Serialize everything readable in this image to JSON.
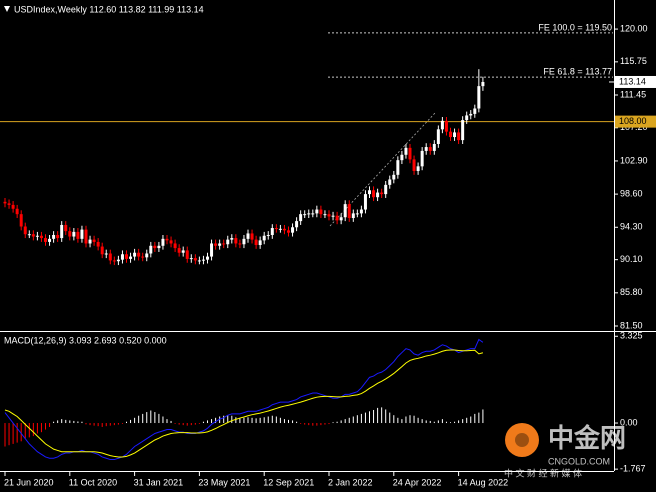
{
  "chart_data": [
    {
      "type": "candlestick",
      "title": "USDIndex,Weekly  112.60 113.82 111.99 113.14",
      "categories": [
        "21 Jun 2020",
        null,
        null,
        null,
        null,
        null,
        null,
        null,
        null,
        null,
        null,
        null,
        null,
        null,
        null,
        null,
        "11 Oct 2020",
        null,
        null,
        null,
        null,
        null,
        null,
        null,
        null,
        null,
        null,
        null,
        null,
        null,
        null,
        null,
        "31 Jan 2021",
        null,
        null,
        null,
        null,
        null,
        null,
        null,
        null,
        null,
        null,
        null,
        null,
        null,
        null,
        null,
        "23 May 2021",
        null,
        null,
        null,
        null,
        null,
        null,
        null,
        null,
        null,
        null,
        null,
        null,
        null,
        null,
        null,
        "12 Sep 2021",
        null,
        null,
        null,
        null,
        null,
        null,
        null,
        null,
        null,
        null,
        null,
        null,
        null,
        null,
        null,
        "2 Jan 2022",
        null,
        null,
        null,
        null,
        null,
        null,
        null,
        null,
        null,
        null,
        null,
        null,
        null,
        null,
        null,
        "24 Apr 2022",
        null,
        null,
        null,
        null,
        null,
        null,
        null,
        null,
        null,
        null,
        null,
        null,
        null,
        null,
        null,
        "14 Aug 2022",
        null,
        null,
        null,
        null,
        null,
        null
      ],
      "open": [
        97.6,
        97.4,
        97.2,
        96.7,
        96.0,
        94.4,
        93.4,
        93.4,
        93.1,
        93.2,
        92.9,
        92.4,
        92.8,
        93.3,
        92.9,
        94.6,
        93.8,
        93.1,
        93.7,
        92.8,
        94.0,
        92.2,
        92.7,
        92.4,
        91.8,
        90.8,
        90.9,
        90.0,
        89.9,
        90.1,
        90.8,
        90.2,
        90.5,
        91.0,
        90.5,
        90.4,
        90.9,
        91.9,
        91.6,
        91.9,
        92.8,
        92.6,
        92.2,
        91.6,
        91.0,
        91.3,
        90.2,
        90.3,
        90.0,
        90.0,
        90.1,
        90.5,
        92.2,
        91.9,
        92.2,
        92.1,
        92.7,
        92.9,
        92.2,
        92.1,
        92.8,
        93.5,
        92.7,
        92.0,
        92.6,
        93.2,
        93.3,
        94.2,
        94.1,
        94.1,
        93.9,
        93.6,
        94.3,
        95.1,
        96.0,
        96.0,
        96.1,
        96.1,
        96.6,
        96.0,
        96.0,
        95.7,
        95.8,
        95.2,
        95.6,
        97.3,
        95.5,
        96.1,
        96.1,
        96.6,
        98.6,
        99.1,
        98.2,
        98.8,
        98.6,
        99.8,
        100.5,
        101.1,
        103.0,
        103.7,
        104.6,
        103.1,
        101.6,
        102.2,
        104.2,
        104.7,
        104.2,
        105.1,
        107.0,
        108.1,
        106.7,
        106.0,
        106.6,
        105.6,
        108.2,
        108.8,
        109.0,
        109.7,
        112.6
      ],
      "high": [
        98.1,
        97.9,
        97.7,
        97.2,
        96.5,
        94.9,
        93.9,
        93.9,
        93.7,
        93.7,
        93.4,
        93.3,
        93.8,
        93.8,
        95.1,
        95.1,
        94.3,
        94.2,
        94.2,
        94.5,
        94.5,
        93.2,
        93.2,
        92.9,
        92.3,
        91.4,
        91.4,
        90.5,
        90.6,
        91.3,
        91.3,
        91.0,
        91.5,
        91.5,
        91.0,
        91.4,
        92.4,
        92.4,
        92.4,
        93.3,
        93.3,
        93.1,
        92.7,
        92.1,
        91.8,
        91.8,
        90.8,
        90.8,
        90.5,
        90.6,
        91.0,
        92.7,
        92.7,
        92.7,
        92.7,
        93.2,
        93.4,
        93.4,
        92.7,
        93.3,
        94.0,
        94.0,
        93.2,
        93.1,
        93.7,
        93.8,
        94.7,
        94.7,
        94.6,
        94.6,
        94.4,
        94.8,
        95.6,
        96.5,
        96.5,
        96.6,
        96.6,
        97.1,
        97.1,
        96.5,
        96.5,
        96.3,
        96.3,
        96.1,
        97.8,
        97.8,
        96.6,
        96.6,
        97.1,
        99.1,
        99.6,
        99.6,
        99.3,
        99.3,
        100.3,
        101.0,
        101.6,
        103.5,
        104.2,
        105.1,
        105.1,
        103.6,
        102.7,
        104.7,
        105.2,
        105.2,
        105.6,
        107.5,
        108.6,
        108.6,
        107.2,
        107.1,
        107.1,
        108.7,
        109.3,
        109.5,
        110.2,
        114.8,
        113.82
      ],
      "low": [
        96.9,
        96.7,
        96.2,
        95.5,
        93.9,
        92.9,
        92.9,
        92.6,
        92.6,
        92.4,
        91.9,
        91.9,
        92.3,
        92.4,
        92.4,
        93.3,
        92.6,
        92.6,
        92.3,
        92.3,
        91.7,
        91.7,
        91.9,
        91.3,
        90.3,
        90.3,
        89.5,
        89.4,
        89.4,
        89.6,
        89.7,
        89.7,
        90.0,
        90.0,
        89.9,
        89.9,
        90.4,
        91.1,
        91.1,
        91.4,
        92.1,
        91.7,
        91.1,
        90.5,
        90.5,
        89.7,
        89.7,
        89.5,
        89.5,
        89.5,
        89.6,
        90.0,
        91.4,
        91.4,
        91.6,
        91.6,
        92.2,
        91.7,
        91.6,
        91.6,
        92.3,
        92.2,
        91.5,
        91.5,
        92.1,
        92.7,
        92.8,
        93.6,
        93.6,
        93.4,
        93.1,
        93.1,
        93.8,
        94.6,
        95.5,
        95.5,
        95.6,
        95.6,
        95.5,
        95.5,
        95.2,
        95.2,
        94.7,
        94.7,
        95.1,
        95.0,
        95.0,
        95.6,
        95.6,
        96.1,
        98.1,
        97.7,
        97.7,
        98.1,
        98.1,
        99.3,
        100.0,
        100.6,
        102.5,
        103.2,
        102.6,
        101.1,
        101.1,
        101.7,
        103.7,
        103.7,
        103.7,
        104.6,
        106.5,
        106.2,
        105.5,
        105.5,
        105.1,
        105.1,
        107.7,
        108.3,
        108.5,
        109.2,
        111.99
      ],
      "close": [
        97.4,
        97.2,
        96.7,
        96.0,
        94.4,
        93.4,
        93.4,
        93.1,
        93.2,
        92.9,
        92.4,
        92.8,
        93.3,
        92.9,
        94.6,
        93.8,
        93.1,
        93.7,
        92.8,
        94.0,
        92.2,
        92.7,
        92.4,
        91.8,
        90.8,
        90.9,
        90.0,
        89.9,
        90.1,
        90.8,
        90.2,
        90.5,
        91.0,
        90.5,
        90.4,
        90.9,
        91.9,
        91.6,
        91.9,
        92.8,
        92.6,
        92.2,
        91.6,
        91.0,
        91.3,
        90.2,
        90.3,
        90.0,
        90.0,
        90.1,
        90.5,
        92.2,
        91.9,
        92.2,
        92.1,
        92.7,
        92.9,
        92.2,
        92.1,
        92.8,
        93.5,
        92.7,
        92.0,
        92.6,
        93.2,
        93.3,
        94.2,
        94.1,
        94.1,
        93.9,
        93.6,
        94.3,
        95.1,
        96.0,
        96.0,
        96.1,
        96.1,
        96.6,
        96.0,
        96.0,
        95.7,
        95.8,
        95.2,
        95.6,
        97.3,
        95.5,
        96.1,
        96.1,
        96.6,
        98.6,
        99.1,
        98.2,
        98.8,
        98.6,
        99.8,
        100.5,
        101.1,
        103.0,
        103.7,
        104.6,
        103.1,
        101.6,
        102.2,
        104.2,
        104.7,
        104.2,
        105.1,
        107.0,
        108.1,
        106.7,
        106.0,
        106.6,
        105.6,
        108.2,
        108.8,
        109.0,
        109.7,
        112.6,
        113.14
      ],
      "up_color": "#ffffff",
      "down_color": "#ff0000",
      "ylim": [
        80.98,
        123.51
      ],
      "yticks": [
        {
          "value": 120,
          "label": "120.00"
        },
        {
          "value": 115.75,
          "label": "115.75"
        },
        {
          "value": 111.45,
          "label": "111.45"
        },
        {
          "value": 107.2,
          "label": "107.20"
        },
        {
          "value": 102.9,
          "label": "102.90"
        },
        {
          "value": 98.6,
          "label": "98.60"
        },
        {
          "value": 94.3,
          "label": "94.30"
        },
        {
          "value": 90.1,
          "label": "90.10"
        },
        {
          "value": 85.8,
          "label": "85.80"
        },
        {
          "value": 81.5,
          "label": "81.50"
        }
      ],
      "levels": [
        {
          "text": "FE 100.0 = 119.50",
          "value": 119.5,
          "color": "#c8c8c8"
        },
        {
          "text": "FE 61.8 = 113.77",
          "value": 113.77,
          "color": "#c8c8c8"
        }
      ],
      "hline": {
        "value": 108,
        "label": "108.00",
        "color": "#daa520"
      },
      "last_price": {
        "value": 113.14,
        "label": "113.14"
      }
    },
    {
      "type": "combo",
      "title": "MACD(12,26,9) 3.093 2.693 0.520 0.000",
      "ylim": [
        -1.8,
        3.45
      ],
      "yticks": [
        3.325,
        {
          "value": 0,
          "label": "0.00"
        },
        -1.767
      ],
      "series": [
        {
          "type": "bar",
          "color": "#ffffff",
          "neg_color": "#ff0000",
          "values": [
            -0.9,
            -0.85,
            -0.8,
            -0.75,
            -0.7,
            -0.6,
            -0.55,
            -0.5,
            -0.4,
            -0.35,
            -0.25,
            -0.15,
            0.05,
            0.1,
            0.15,
            0.12,
            0.1,
            0.08,
            0.06,
            0.05,
            -0.05,
            -0.08,
            -0.1,
            -0.12,
            -0.15,
            -0.12,
            -0.1,
            -0.08,
            -0.06,
            -0.03,
            0.05,
            0.12,
            0.2,
            0.28,
            0.35,
            0.42,
            0.48,
            0.42,
            0.35,
            0.25,
            0.15,
            0.08,
            -0.03,
            -0.06,
            -0.08,
            -0.1,
            -0.08,
            -0.06,
            -0.03,
            0.05,
            0.1,
            0.15,
            0.2,
            0.25,
            0.28,
            0.3,
            0.28,
            0.22,
            0.18,
            0.2,
            0.22,
            0.2,
            0.18,
            0.2,
            0.22,
            0.25,
            0.28,
            0.25,
            0.2,
            0.15,
            0.12,
            0.1,
            0.05,
            -0.03,
            -0.06,
            -0.08,
            -0.1,
            -0.1,
            -0.08,
            -0.06,
            -0.04,
            0.03,
            0.05,
            0.1,
            0.15,
            0.2,
            0.25,
            0.3,
            0.35,
            0.4,
            0.45,
            0.5,
            0.58,
            0.6,
            0.52,
            0.4,
            0.3,
            0.2,
            0.15,
            0.25,
            0.3,
            0.28,
            0.2,
            0.15,
            0.1,
            0.08,
            0.05,
            0.1,
            0.15,
            0.05,
            0.03,
            0.05,
            0.1,
            0.15,
            0.2,
            0.25,
            0.35,
            0.4,
            0.52
          ]
        },
        {
          "type": "line",
          "color": "#1a1aff",
          "values": [
            0.4,
            0.2,
            0.0,
            -0.2,
            -0.4,
            -0.6,
            -0.8,
            -0.95,
            -1.1,
            -1.2,
            -1.3,
            -1.35,
            -1.35,
            -1.3,
            -1.2,
            -1.15,
            -1.15,
            -1.1,
            -1.1,
            -1.05,
            -1.1,
            -1.1,
            -1.15,
            -1.2,
            -1.3,
            -1.35,
            -1.4,
            -1.4,
            -1.35,
            -1.3,
            -1.2,
            -1.05,
            -0.9,
            -0.8,
            -0.7,
            -0.6,
            -0.5,
            -0.4,
            -0.35,
            -0.3,
            -0.25,
            -0.25,
            -0.3,
            -0.35,
            -0.35,
            -0.4,
            -0.4,
            -0.4,
            -0.35,
            -0.3,
            -0.2,
            -0.05,
            0.05,
            0.15,
            0.2,
            0.3,
            0.35,
            0.35,
            0.35,
            0.4,
            0.45,
            0.45,
            0.45,
            0.5,
            0.55,
            0.6,
            0.7,
            0.75,
            0.8,
            0.8,
            0.8,
            0.85,
            0.9,
            1.0,
            1.05,
            1.1,
            1.15,
            1.15,
            1.1,
            1.05,
            1.0,
            0.95,
            0.95,
            1.0,
            1.1,
            1.1,
            1.15,
            1.2,
            1.35,
            1.55,
            1.75,
            1.8,
            1.9,
            1.95,
            2.05,
            2.2,
            2.35,
            2.55,
            2.7,
            2.85,
            2.8,
            2.65,
            2.6,
            2.7,
            2.75,
            2.75,
            2.8,
            2.9,
            3.0,
            2.95,
            2.85,
            2.8,
            2.7,
            2.75,
            2.8,
            2.85,
            2.85,
            3.2,
            3.093
          ]
        },
        {
          "type": "line",
          "color": "#ffff00",
          "values": [
            0.5,
            0.45,
            0.35,
            0.25,
            0.1,
            -0.05,
            -0.2,
            -0.35,
            -0.5,
            -0.65,
            -0.8,
            -0.9,
            -1.0,
            -1.05,
            -1.1,
            -1.1,
            -1.1,
            -1.1,
            -1.1,
            -1.1,
            -1.1,
            -1.1,
            -1.1,
            -1.12,
            -1.15,
            -1.2,
            -1.25,
            -1.28,
            -1.3,
            -1.3,
            -1.28,
            -1.22,
            -1.15,
            -1.05,
            -0.95,
            -0.85,
            -0.75,
            -0.65,
            -0.58,
            -0.5,
            -0.45,
            -0.4,
            -0.38,
            -0.37,
            -0.37,
            -0.37,
            -0.38,
            -0.38,
            -0.38,
            -0.37,
            -0.34,
            -0.28,
            -0.21,
            -0.13,
            -0.06,
            0.02,
            0.09,
            0.14,
            0.19,
            0.23,
            0.28,
            0.32,
            0.35,
            0.38,
            0.42,
            0.46,
            0.51,
            0.56,
            0.61,
            0.65,
            0.68,
            0.72,
            0.76,
            0.8,
            0.85,
            0.9,
            0.95,
            0.99,
            1.01,
            1.02,
            1.02,
            1.01,
            1.0,
            1.0,
            1.02,
            1.03,
            1.06,
            1.08,
            1.13,
            1.22,
            1.33,
            1.42,
            1.52,
            1.6,
            1.69,
            1.79,
            1.9,
            2.03,
            2.16,
            2.3,
            2.4,
            2.45,
            2.48,
            2.52,
            2.57,
            2.6,
            2.64,
            2.69,
            2.75,
            2.79,
            2.8,
            2.8,
            2.78,
            2.77,
            2.77,
            2.78,
            2.79,
            2.65,
            2.693
          ]
        }
      ]
    }
  ],
  "watermark": {
    "brand": "中金网",
    "site": "CNGOLD.COM",
    "slogan": "中 文 财 经 新 媒 体"
  }
}
